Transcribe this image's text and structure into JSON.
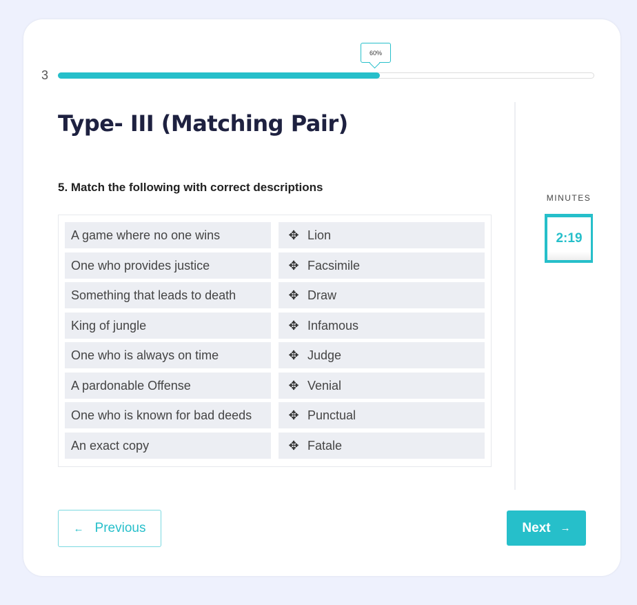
{
  "progress": {
    "step": "3",
    "percent": 60,
    "label": "60%",
    "color": "#26bfca"
  },
  "title": "Type- III (Matching Pair)",
  "question": "5.  Match the following with correct descriptions",
  "left_items": [
    "A game where no one wins",
    "One who provides justice",
    "Something that leads to death",
    "King of jungle",
    "One who is always on time",
    "A pardonable Offense",
    "One who is known for bad deeds",
    "An exact copy"
  ],
  "right_items": [
    "Lion",
    "Facsimile",
    "Draw",
    "Infamous",
    "Judge",
    "Venial",
    "Punctual",
    "Fatale"
  ],
  "right_icon": "move-icon",
  "timer": {
    "label": "MINUTES",
    "value": "2:19"
  },
  "nav": {
    "previous": "Previous",
    "next": "Next",
    "prev_icon": "←",
    "next_icon": "→"
  }
}
